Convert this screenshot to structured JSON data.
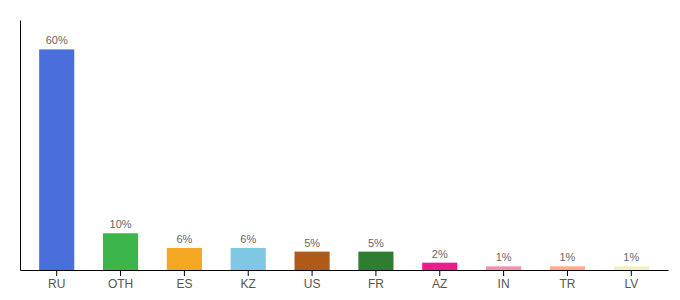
{
  "chart_data": {
    "type": "bar",
    "categories": [
      "RU",
      "OTH",
      "ES",
      "KZ",
      "US",
      "FR",
      "AZ",
      "IN",
      "TR",
      "LV"
    ],
    "values": [
      60,
      10,
      6,
      6,
      5,
      5,
      2,
      1,
      1,
      1
    ],
    "value_labels": [
      "60%",
      "10%",
      "6%",
      "6%",
      "5%",
      "5%",
      "2%",
      "1%",
      "1%",
      "1%"
    ],
    "colors": [
      "#4A6EDB",
      "#3CB54A",
      "#F5A623",
      "#7EC8E3",
      "#B05A1A",
      "#2E7D32",
      "#E91E8C",
      "#F48FB1",
      "#FFAB91",
      "#F0F0C0"
    ],
    "ylim": [
      0,
      68
    ],
    "grid": false,
    "data_labels": true,
    "tick_labels": "x"
  }
}
